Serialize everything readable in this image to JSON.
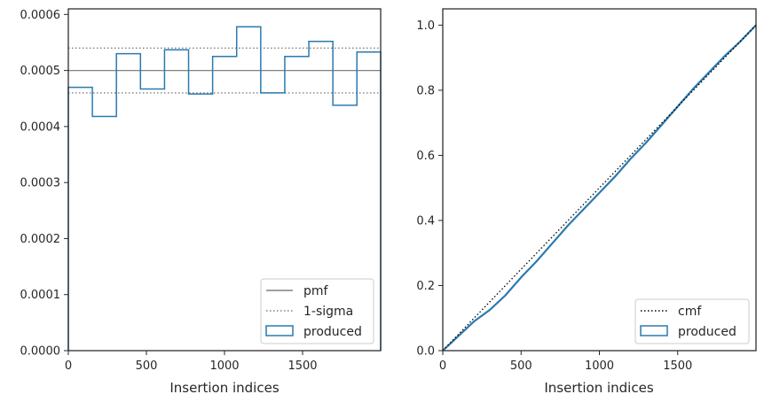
{
  "chart_data": [
    {
      "type": "histogram",
      "xlabel": "Insertion indices",
      "ylabel": "",
      "xlim": [
        0,
        2000
      ],
      "ylim": [
        0,
        0.00061
      ],
      "xticks": [
        0,
        500,
        1000,
        1500
      ],
      "xtick_labels": [
        "0",
        "500",
        "1000",
        "1500"
      ],
      "yticks": [
        0,
        0.0001,
        0.0002,
        0.0003,
        0.0004,
        0.0005,
        0.0006
      ],
      "ytick_labels": [
        "0.0000",
        "0.0001",
        "0.0002",
        "0.0003",
        "0.0004",
        "0.0005",
        "0.0006"
      ],
      "grid": false,
      "legend_position": "lower-right",
      "reference_lines": {
        "pmf": 0.0005,
        "sigma_upper": 0.00054,
        "sigma_lower": 0.00046
      },
      "bin_edges": [
        0,
        154,
        308,
        462,
        616,
        770,
        924,
        1078,
        1232,
        1386,
        1540,
        1694,
        1848,
        2000
      ],
      "values": [
        0.00047,
        0.000418,
        0.00053,
        0.000467,
        0.000537,
        0.000458,
        0.000525,
        0.000578,
        0.00046,
        0.000525,
        0.000552,
        0.000438,
        0.000533
      ],
      "legend": [
        "pmf",
        "1-sigma",
        "produced"
      ],
      "colors": {
        "pmf": "#808080",
        "sigma": "#808080",
        "produced": "#2a7ab0"
      }
    },
    {
      "type": "line",
      "xlabel": "Insertion indices",
      "ylabel": "",
      "xlim": [
        0,
        2000
      ],
      "ylim": [
        0,
        1.05
      ],
      "xticks": [
        0,
        500,
        1000,
        1500
      ],
      "xtick_labels": [
        "0",
        "500",
        "1000",
        "1500"
      ],
      "yticks": [
        0,
        0.2,
        0.4,
        0.6,
        0.8,
        1.0
      ],
      "ytick_labels": [
        "0.0",
        "0.2",
        "0.4",
        "0.6",
        "0.8",
        "1.0"
      ],
      "grid": false,
      "legend_position": "lower-right",
      "series": [
        {
          "name": "cmf",
          "x": [
            0,
            2000
          ],
          "y": [
            0,
            1.0
          ]
        },
        {
          "name": "produced",
          "x": [
            0,
            100,
            200,
            300,
            400,
            500,
            600,
            700,
            800,
            900,
            1000,
            1100,
            1200,
            1300,
            1400,
            1500,
            1600,
            1700,
            1800,
            1900,
            2000
          ],
          "y": [
            0,
            0.045,
            0.09,
            0.125,
            0.17,
            0.225,
            0.275,
            0.33,
            0.385,
            0.435,
            0.485,
            0.535,
            0.59,
            0.64,
            0.695,
            0.75,
            0.805,
            0.855,
            0.905,
            0.95,
            1.0
          ]
        }
      ],
      "legend": [
        "cmf",
        "produced"
      ],
      "colors": {
        "cmf": "#000000",
        "produced": "#2a7ab0"
      }
    }
  ]
}
